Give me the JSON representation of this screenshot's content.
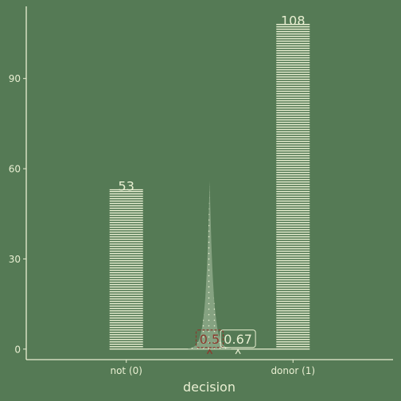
{
  "colors": {
    "background": "#557a55",
    "foreground": "#e9efd2",
    "bar_fill": "#e9efd2",
    "density_fill": "#8ea98a",
    "threshold_color": "#8b3a2e"
  },
  "chart_data": {
    "type": "bar",
    "title": "",
    "xlabel": "decision",
    "ylabel": "",
    "categories": [
      "not (0)",
      "donor (1)"
    ],
    "values": [
      53,
      108
    ],
    "ylim": [
      -3.5,
      114
    ],
    "yticks": [
      0,
      30,
      60,
      90
    ],
    "xlim": [
      0.4,
      2.6
    ],
    "grid": false,
    "annotations": {
      "threshold": {
        "label": "0.5",
        "value": 0.5
      },
      "estimate": {
        "label": "0.67",
        "value": 0.67
      }
    },
    "density_peak": 56
  }
}
